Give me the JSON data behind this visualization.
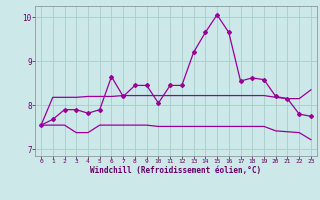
{
  "xlabel": "Windchill (Refroidissement éolien,°C)",
  "xlim": [
    -0.5,
    23.5
  ],
  "ylim": [
    6.85,
    10.25
  ],
  "yticks": [
    7,
    8,
    9,
    10
  ],
  "xticks": [
    0,
    1,
    2,
    3,
    4,
    5,
    6,
    7,
    8,
    9,
    10,
    11,
    12,
    13,
    14,
    15,
    16,
    17,
    18,
    19,
    20,
    21,
    22,
    23
  ],
  "background_color": "#cce8e8",
  "grid_color": "#aacccc",
  "line_color": "#990099",
  "main_x": [
    0,
    1,
    2,
    3,
    4,
    5,
    6,
    7,
    8,
    9,
    10,
    11,
    12,
    13,
    14,
    15,
    16,
    17,
    18,
    19,
    20,
    21,
    22,
    23
  ],
  "main_y": [
    7.55,
    7.68,
    7.9,
    7.9,
    7.82,
    7.9,
    8.65,
    8.2,
    8.45,
    8.45,
    8.05,
    8.45,
    8.45,
    9.2,
    9.65,
    10.05,
    9.65,
    8.55,
    8.62,
    8.58,
    8.2,
    8.15,
    7.8,
    7.75
  ],
  "upper_x": [
    0,
    1,
    2,
    3,
    4,
    5,
    6,
    7,
    8,
    9,
    10,
    11,
    12,
    13,
    14,
    15,
    16,
    17,
    18,
    19,
    20,
    21,
    22,
    23
  ],
  "upper_y": [
    7.55,
    8.18,
    8.18,
    8.18,
    8.2,
    8.2,
    8.2,
    8.22,
    8.22,
    8.22,
    8.22,
    8.22,
    8.22,
    8.22,
    8.22,
    8.22,
    8.22,
    8.22,
    8.22,
    8.22,
    8.18,
    8.15,
    8.15,
    8.35
  ],
  "lower_x": [
    0,
    1,
    2,
    3,
    4,
    5,
    6,
    7,
    8,
    9,
    10,
    11,
    12,
    13,
    14,
    15,
    16,
    17,
    18,
    19,
    20,
    21,
    22,
    23
  ],
  "lower_y": [
    7.55,
    7.55,
    7.55,
    7.38,
    7.38,
    7.55,
    7.55,
    7.55,
    7.55,
    7.55,
    7.52,
    7.52,
    7.52,
    7.52,
    7.52,
    7.52,
    7.52,
    7.52,
    7.52,
    7.52,
    7.42,
    7.4,
    7.38,
    7.22
  ]
}
